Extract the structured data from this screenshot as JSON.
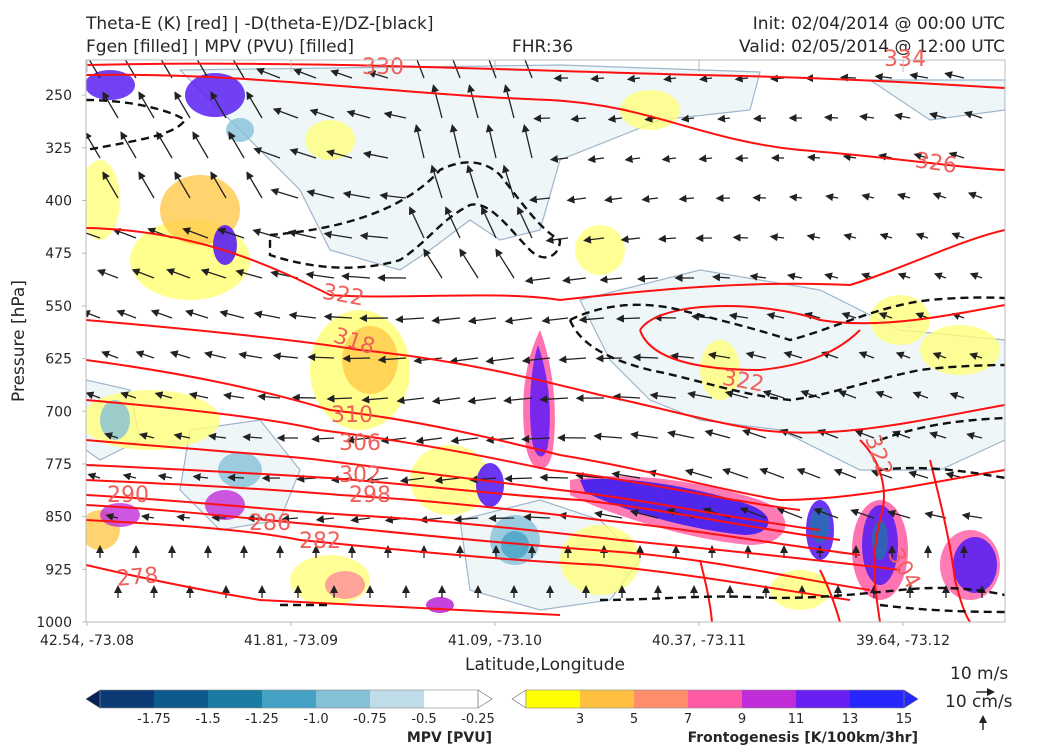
{
  "header": {
    "title_line1": "Theta-E (K) [red] | -D(theta-E)/DZ-[black]",
    "title_line2": "Fgen [filled] | MPV (PVU) [filled]",
    "fhr": "FHR:36",
    "init": "Init: 02/04/2014 @ 00:00 UTC",
    "valid": "Valid: 02/05/2014 @ 12:00 UTC"
  },
  "chart_data": {
    "type": "cross-section",
    "xlabel": "Latitude,Longitude",
    "ylabel": "Pressure [hPa]",
    "x_ticks": [
      "42.54, -73.08",
      "41.81, -73.09",
      "41.09, -73.10",
      "40.37, -73.11",
      "39.64, -73.12"
    ],
    "y_ticks": [
      250,
      325,
      400,
      475,
      550,
      625,
      700,
      775,
      850,
      925,
      1000
    ],
    "ylim": [
      1000,
      200
    ],
    "theta_e_labels": [
      "330",
      "334",
      "326",
      "322",
      "318",
      "322",
      "310",
      "306",
      "302",
      "298",
      "290",
      "286",
      "282",
      "278",
      "322",
      "304"
    ],
    "mpv_colorbar": {
      "label": "MPV [PVU]",
      "ticks": [
        "-1.75",
        "-1.5",
        "-1.25",
        "-1.0",
        "-0.75",
        "-0.5",
        "-0.25"
      ],
      "colors": [
        "#08205a",
        "#0b3a75",
        "#0d5a8c",
        "#1a7ba3",
        "#45a2c4",
        "#84c0d8",
        "#bedde8",
        "#ffffff"
      ]
    },
    "fgen_colorbar": {
      "label": "Frontogenesis [K/100km/3hr]",
      "ticks": [
        "3",
        "5",
        "7",
        "9",
        "11",
        "13",
        "15"
      ],
      "colors": [
        "#ffffff",
        "#ffff00",
        "#ffbf3f",
        "#ff8c6a",
        "#ff5aa4",
        "#c02dd8",
        "#6a1ff2",
        "#2626ff"
      ]
    },
    "reference_vectors": {
      "horizontal": "10 m/s",
      "vertical": "10 cm/s"
    }
  }
}
